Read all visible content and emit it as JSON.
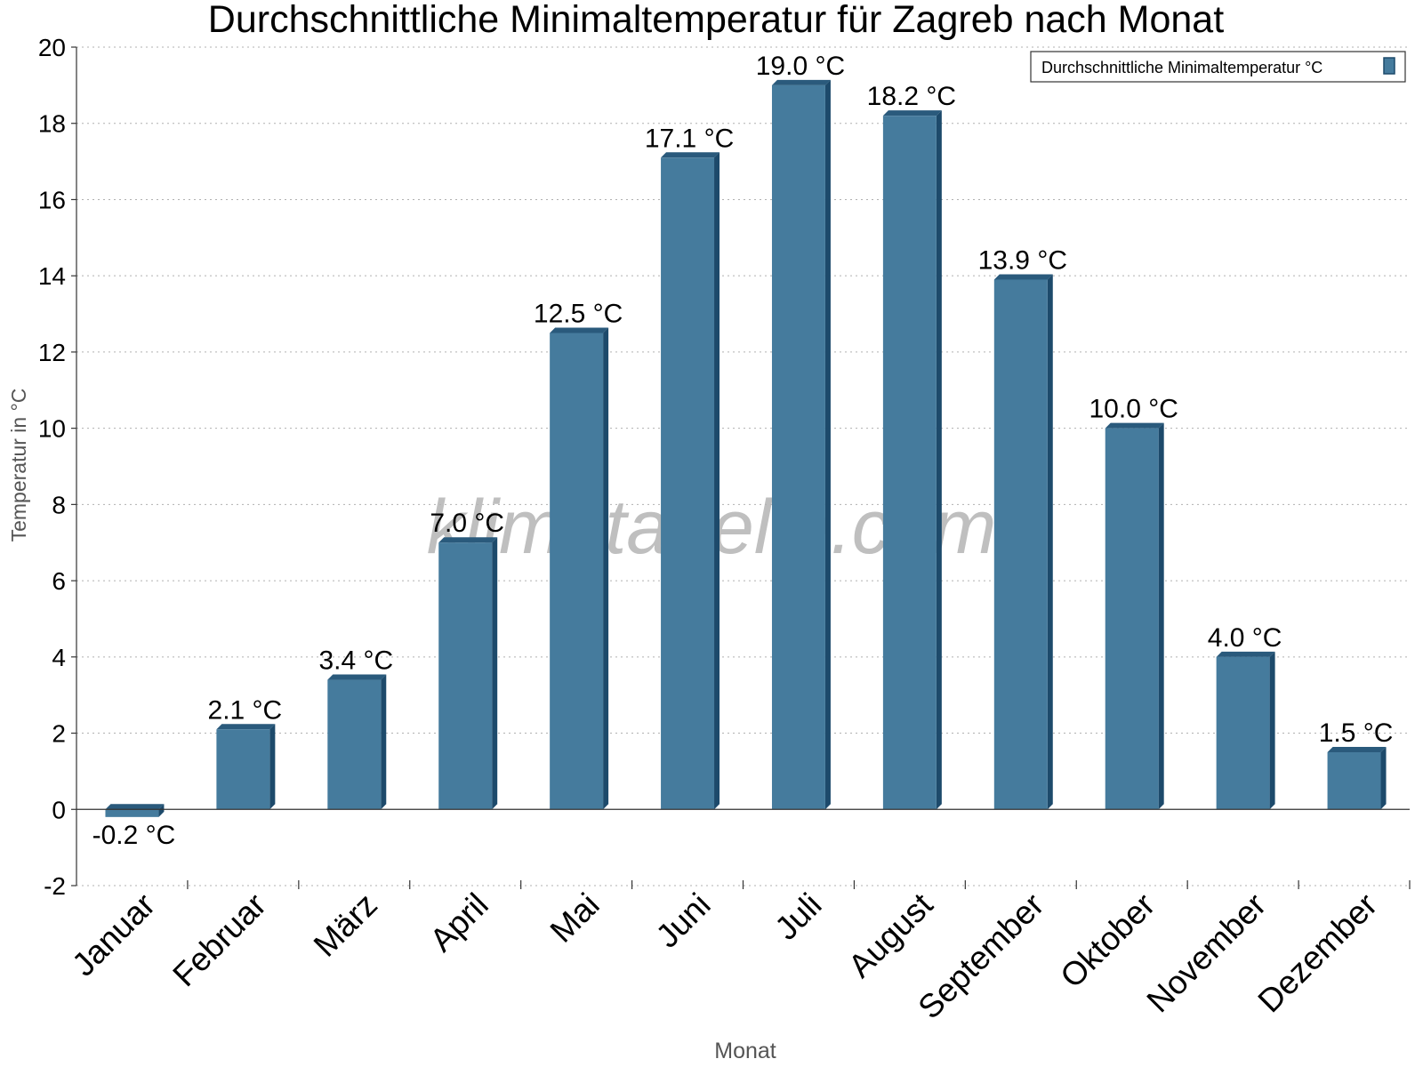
{
  "chart_data": {
    "type": "bar",
    "title": "Durchschnittliche Minimaltemperatur für Zagreb nach Monat",
    "xlabel": "Monat",
    "ylabel": "Temperatur in °C",
    "categories": [
      "Januar",
      "Februar",
      "März",
      "April",
      "Mai",
      "Juni",
      "Juli",
      "August",
      "September",
      "Oktober",
      "November",
      "Dezember"
    ],
    "series": [
      {
        "name": "Durchschnittliche Minimaltemperatur °C",
        "values": [
          -0.2,
          2.1,
          3.4,
          7.0,
          12.5,
          17.1,
          19.0,
          18.2,
          13.9,
          10.0,
          4.0,
          1.5
        ],
        "data_labels": [
          "-0.2 °C",
          "2.1 °C",
          "3.4 °C",
          "7.0 °C",
          "12.5 °C",
          "17.1 °C",
          "19.0 °C",
          "18.2 °C",
          "13.9 °C",
          "10.0 °C",
          "4.0 °C",
          "1.5 °C"
        ]
      }
    ],
    "ylim": [
      -2,
      20
    ],
    "yticks": [
      -2,
      0,
      2,
      4,
      6,
      8,
      10,
      12,
      14,
      16,
      18,
      20
    ],
    "grid": true,
    "legend_position": "top-right",
    "watermark": "klimatabelle.com",
    "colors": {
      "bar_front": "#457b9d",
      "bar_side": "#1d4a6b",
      "bar_top": "#2a5a7c",
      "grid": "#b0b0b0",
      "axis": "#333333",
      "axis_label": "#555555",
      "watermark": "#b4b4b4"
    }
  }
}
